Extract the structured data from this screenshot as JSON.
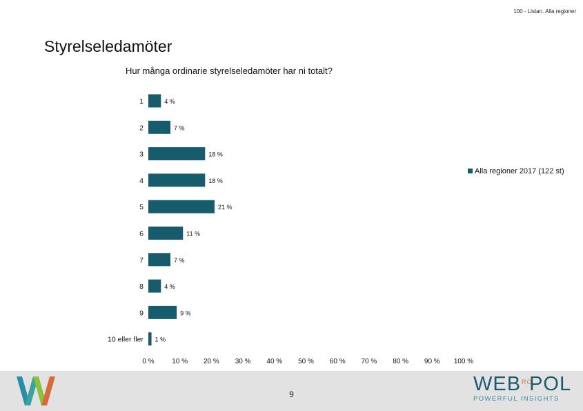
{
  "header": {
    "subtitle": "100 - Listan. Alla regioner"
  },
  "slide": {
    "title": "Styrelseledamöter"
  },
  "chart_data": {
    "type": "bar",
    "orientation": "horizontal",
    "title": "Hur många ordinarie styrelseledamöter har ni totalt?",
    "categories": [
      "1",
      "2",
      "3",
      "4",
      "5",
      "6",
      "7",
      "8",
      "9",
      "10 eller fler"
    ],
    "series": [
      {
        "name": "Alla regioner 2017 (122 st)",
        "values": [
          4,
          7,
          18,
          18,
          21,
          11,
          7,
          4,
          9,
          1
        ],
        "labels": [
          "4 %",
          "7 %",
          "18 %",
          "18 %",
          "21 %",
          "11 %",
          "7 %",
          "4 %",
          "9 %",
          "1 %"
        ],
        "color": "#175c6c"
      }
    ],
    "xlim": [
      0,
      100
    ],
    "xticks": [
      "0 %",
      "10 %",
      "20 %",
      "30 %",
      "40 %",
      "50 %",
      "60 %",
      "70 %",
      "80 %",
      "90 %",
      "100 %"
    ],
    "grid": false,
    "legend_position": "right"
  },
  "footer": {
    "page_number": "9",
    "brand_word_a": "WEB",
    "brand_ro": "RO",
    "brand_word_b": "POL",
    "brand_tagline": "POWERFUL INSIGHTS"
  },
  "colors": {
    "bar": "#175c6c",
    "footer_bg": "#e2e2e2",
    "brand": "#1d5b6e",
    "accent": "#e07a3c"
  }
}
